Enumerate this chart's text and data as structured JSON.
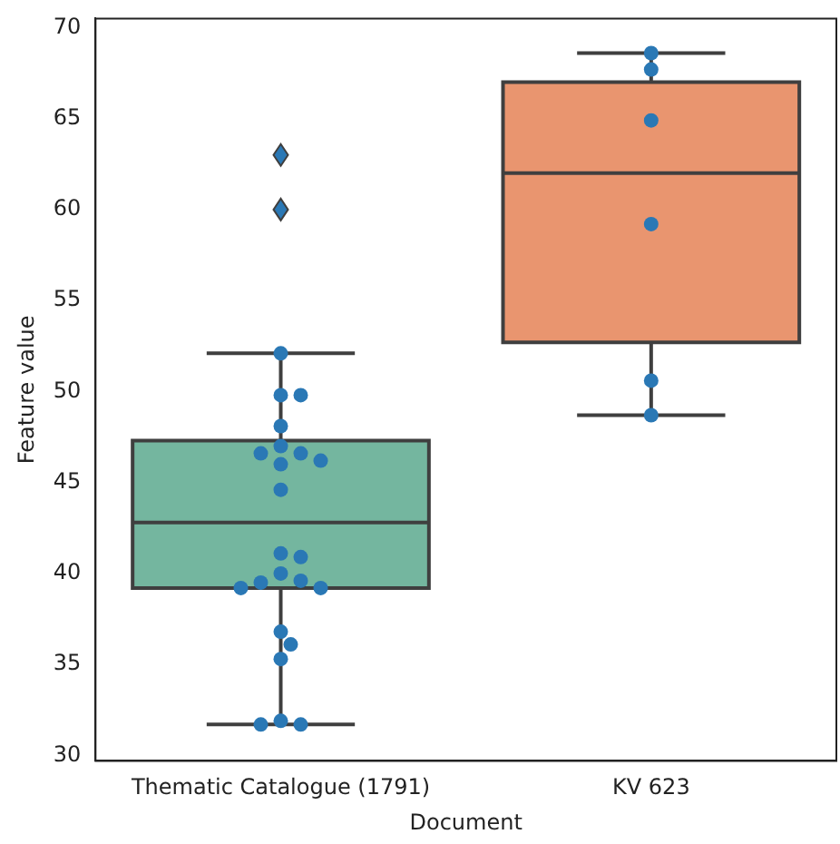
{
  "chart_data": {
    "type": "box",
    "xlabel": "Document",
    "ylabel": "Feature value",
    "categories": [
      "Thematic Catalogue (1791)",
      "KV 623"
    ],
    "colors": [
      "#74b69f",
      "#e9956f"
    ],
    "boxes": [
      {
        "low": 31.7,
        "q1": 39.2,
        "median": 42.8,
        "q3": 47.3,
        "high": 52.1,
        "outliers": [
          63.0,
          60.0
        ]
      },
      {
        "low": 48.7,
        "q1": 52.7,
        "median": 62.0,
        "q3": 67.0,
        "high": 68.6
      }
    ],
    "series": [
      {
        "type": "scatter",
        "color": "#2a78b5",
        "x": [
          "Thematic Catalogue (1791)",
          "Thematic Catalogue (1791)",
          "Thematic Catalogue (1791)",
          "Thematic Catalogue (1791)",
          "Thematic Catalogue (1791)",
          "Thematic Catalogue (1791)",
          "Thematic Catalogue (1791)",
          "Thematic Catalogue (1791)",
          "Thematic Catalogue (1791)",
          "Thematic Catalogue (1791)",
          "Thematic Catalogue (1791)",
          "Thematic Catalogue (1791)",
          "Thematic Catalogue (1791)",
          "Thematic Catalogue (1791)",
          "Thematic Catalogue (1791)",
          "Thematic Catalogue (1791)",
          "Thematic Catalogue (1791)",
          "Thematic Catalogue (1791)",
          "Thematic Catalogue (1791)",
          "Thematic Catalogue (1791)",
          "Thematic Catalogue (1791)",
          "Thematic Catalogue (1791)",
          "Thematic Catalogue (1791)",
          "KV 623",
          "KV 623",
          "KV 623",
          "KV 623",
          "KV 623",
          "KV 623"
        ],
        "values": [
          52.1,
          49.8,
          49.8,
          48.1,
          47.0,
          46.6,
          46.6,
          46.2,
          46.0,
          44.6,
          41.1,
          40.9,
          40.0,
          39.6,
          39.5,
          39.2,
          39.2,
          36.8,
          36.1,
          35.3,
          31.9,
          31.7,
          31.7,
          68.6,
          67.7,
          64.9,
          59.2,
          50.6,
          48.7
        ]
      }
    ],
    "ylim": [
      29.7,
      70.5
    ],
    "yticks": [
      30,
      35,
      40,
      45,
      50,
      55,
      60,
      65,
      70
    ],
    "marker": "circle",
    "grid": false,
    "legend": false
  }
}
